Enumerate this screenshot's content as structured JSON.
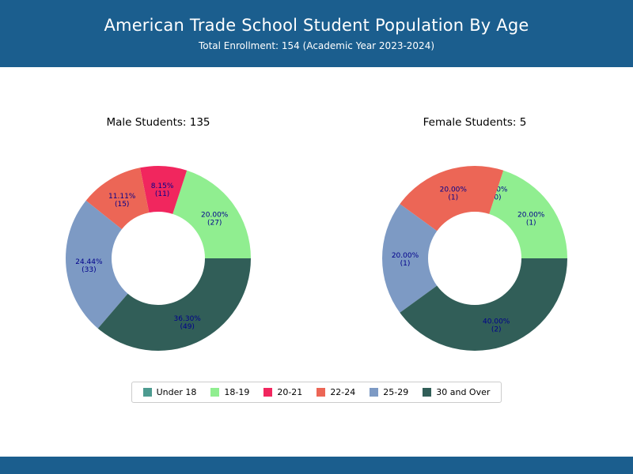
{
  "header": {
    "title": "American Trade School Student Population By Age",
    "subtitle": "Total Enrollment: 154 (Academic Year 2023-2024)",
    "bg_color": "#1b5e8e",
    "text_color": "#ffffff"
  },
  "legend": {
    "position": "bottom-center",
    "items": [
      {
        "label": "Under 18",
        "color": "#4d9b90"
      },
      {
        "label": "18-19",
        "color": "#90ee90"
      },
      {
        "label": "20-21",
        "color": "#f1265e"
      },
      {
        "label": "22-24",
        "color": "#ec6656"
      },
      {
        "label": "25-29",
        "color": "#7d9ac4"
      },
      {
        "label": "30 and Over",
        "color": "#315e58"
      }
    ]
  },
  "chart_data": [
    {
      "type": "pie",
      "donut": true,
      "title": "Male Students: 135",
      "total": 135,
      "categories": [
        "Under 18",
        "18-19",
        "20-21",
        "22-24",
        "25-29",
        "30 and Over"
      ],
      "values": [
        0,
        27,
        11,
        15,
        33,
        49
      ],
      "percents": [
        "0.00",
        "20.00",
        "8.15",
        "11.11",
        "24.44",
        "36.30"
      ],
      "start_angle": 0,
      "counterclockwise": true,
      "label_color": "#00008b"
    },
    {
      "type": "pie",
      "donut": true,
      "title": "Female Students: 5",
      "total": 5,
      "categories": [
        "Under 18",
        "18-19",
        "20-21",
        "22-24",
        "25-29",
        "30 and Over"
      ],
      "values": [
        0,
        1,
        0,
        1,
        1,
        2
      ],
      "percents": [
        "0.00",
        "20.00",
        "0.00",
        "20.00",
        "20.00",
        "40.00"
      ],
      "start_angle": 0,
      "counterclockwise": true,
      "label_color": "#00008b"
    }
  ],
  "footer": {
    "bg_color": "#1b5e8e"
  }
}
